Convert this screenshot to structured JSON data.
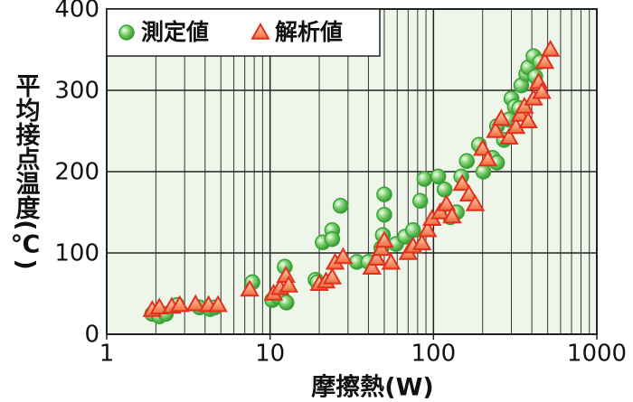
{
  "chart_data": {
    "type": "scatter",
    "xlabel": "摩擦熱(W)",
    "ylabel": "平均接点温度(℃)",
    "xscale": "log",
    "xlim": [
      1,
      1000
    ],
    "xticks": [
      1,
      10,
      100,
      1000
    ],
    "ylim": [
      0,
      400
    ],
    "yticks": [
      0,
      100,
      200,
      300,
      400
    ],
    "grid": true,
    "legend": "upper left",
    "background": "#eef6ea",
    "series": [
      {
        "name": "測定値",
        "color": "#35a335",
        "marker": "circle",
        "x": [
          1.9,
          2.1,
          2.3,
          2.7,
          3.7,
          4.3,
          4.6,
          7.8,
          10.3,
          11.2,
          12.3,
          12.6,
          19,
          19.5,
          21,
          24,
          24,
          27,
          34,
          40,
          48,
          49,
          50,
          50,
          59,
          67,
          75,
          83,
          88,
          107,
          117,
          127,
          139,
          148,
          160,
          190,
          202,
          230,
          245,
          245,
          270,
          290,
          300,
          315,
          335,
          345,
          370,
          380,
          410,
          420,
          450
        ],
        "values": [
          25,
          22,
          25,
          36,
          33,
          31,
          33,
          64,
          42,
          46,
          83,
          39,
          67,
          64,
          113,
          128,
          117,
          158,
          89,
          89,
          106,
          122,
          147,
          172,
          111,
          120,
          128,
          164,
          191,
          194,
          178,
          144,
          150,
          194,
          213,
          233,
          200,
          217,
          256,
          211,
          239,
          264,
          290,
          280,
          278,
          306,
          320,
          328,
          342,
          317,
          335
        ]
      },
      {
        "name": "解析値",
        "color": "#e2301e",
        "marker": "triangle",
        "x": [
          1.9,
          2.1,
          2.5,
          2.8,
          3.5,
          4.2,
          4.8,
          7.5,
          10.5,
          11.5,
          12.5,
          13,
          20,
          22,
          24,
          25,
          28,
          42,
          45,
          48,
          50,
          55,
          70,
          75,
          85,
          92,
          98,
          110,
          120,
          130,
          150,
          165,
          180,
          200,
          215,
          240,
          260,
          290,
          320,
          340,
          360,
          380,
          410,
          440,
          460,
          480,
          520
        ],
        "values": [
          30,
          33,
          34,
          36,
          37,
          36,
          36,
          55,
          50,
          57,
          72,
          60,
          62,
          65,
          70,
          88,
          95,
          82,
          93,
          105,
          115,
          88,
          100,
          108,
          112,
          128,
          142,
          150,
          160,
          145,
          185,
          172,
          160,
          228,
          215,
          250,
          265,
          242,
          255,
          270,
          280,
          262,
          290,
          310,
          298,
          335,
          350
        ]
      }
    ]
  }
}
